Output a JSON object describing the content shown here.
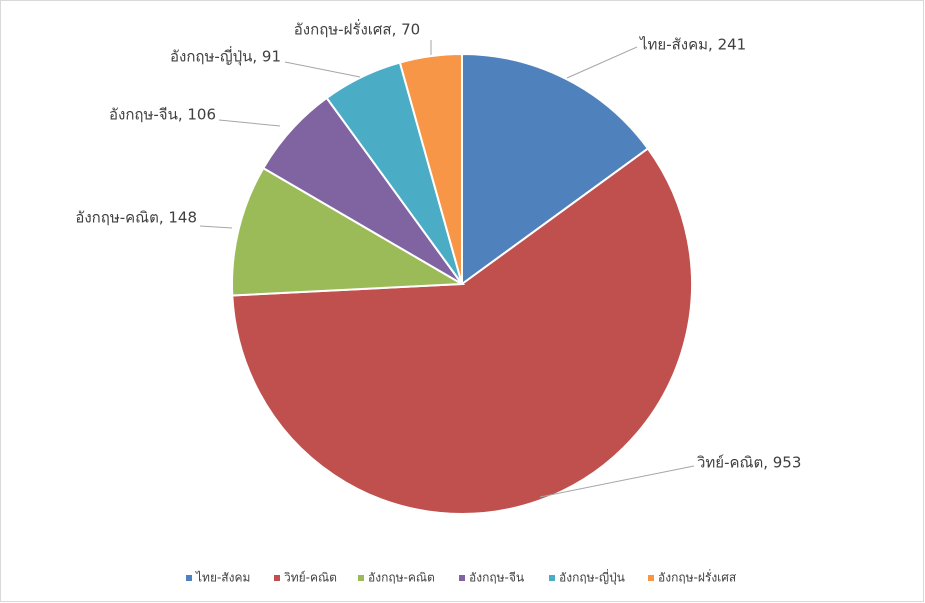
{
  "chart_data": {
    "type": "pie",
    "categories": [
      "ไทย-สังคม",
      "วิทย์-คณิต",
      "อังกฤษ-คณิต",
      "อังกฤษ-จีน",
      "อังกฤษ-ญี่ปุ่น",
      "อังกฤษ-ฝรั่งเศส"
    ],
    "values": [
      241,
      953,
      148,
      106,
      91,
      70
    ],
    "value_labels": [
      "ไทย-สังคม, 241",
      "วิทย์-คณิต, 953",
      "อังกฤษ-คณิต, 148",
      "อังกฤษ-จีน, 106",
      "อังกฤษ-ญี่ปุ่น, 91",
      "อังกฤษ-ฝรั่งเศส, 70"
    ],
    "colors": [
      "#4f81bd",
      "#c0504d",
      "#9bbb59",
      "#8064a2",
      "#4bacc6",
      "#f79646"
    ],
    "legend": "bottom"
  }
}
